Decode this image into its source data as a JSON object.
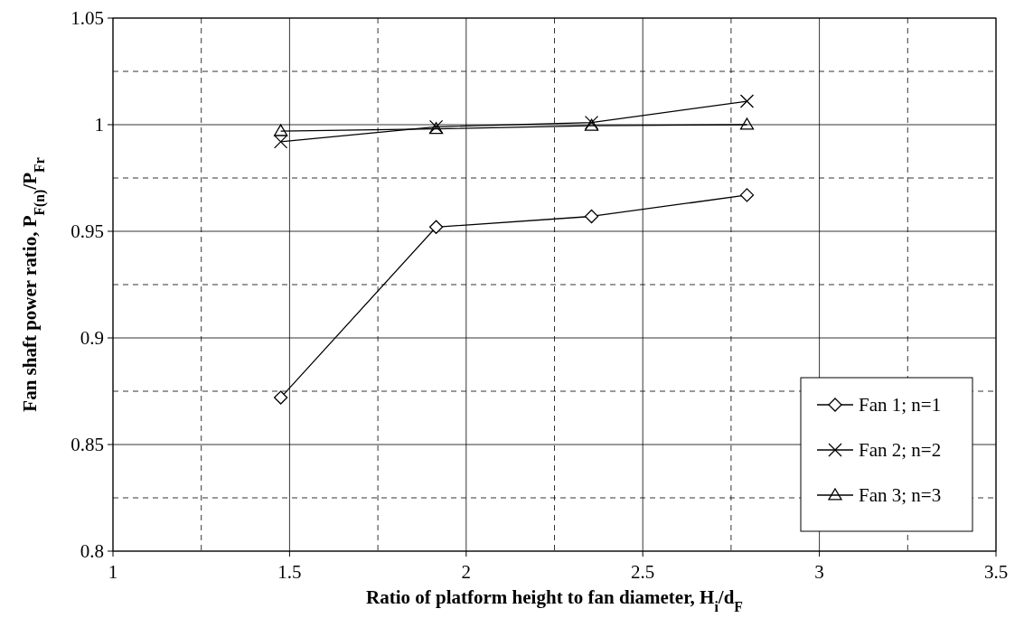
{
  "chart_data": {
    "type": "line",
    "xlabel": "Ratio of platform height to fan diameter, H$_{i}$/d$_{F}$",
    "ylabel": "Fan shaft power ratio, P$_{F(n)}$/P$_{Fr}$",
    "x": [
      1.475,
      1.915,
      2.355,
      2.795
    ],
    "series": [
      {
        "name": "Fan 1; n=1",
        "color": "#000000",
        "marker": "diamond",
        "values": [
          0.872,
          0.952,
          0.957,
          0.967
        ]
      },
      {
        "name": "Fan 2; n=2",
        "color": "#000000",
        "marker": "cross",
        "values": [
          0.992,
          0.999,
          1.001,
          1.011
        ]
      },
      {
        "name": "Fan 3; n=3",
        "color": "#000000",
        "marker": "triangle",
        "values": [
          0.997,
          0.998,
          0.9995,
          1.0
        ]
      }
    ],
    "xlim": [
      1,
      3.5
    ],
    "xticks": [
      1,
      1.5,
      2,
      2.5,
      3,
      3.5
    ],
    "ylim": [
      0.8,
      1.05
    ],
    "yticks": [
      0.8,
      0.85,
      0.9,
      0.95,
      1,
      1.05
    ],
    "grid": true,
    "legend": "bottom right",
    "line_style": "solid"
  }
}
